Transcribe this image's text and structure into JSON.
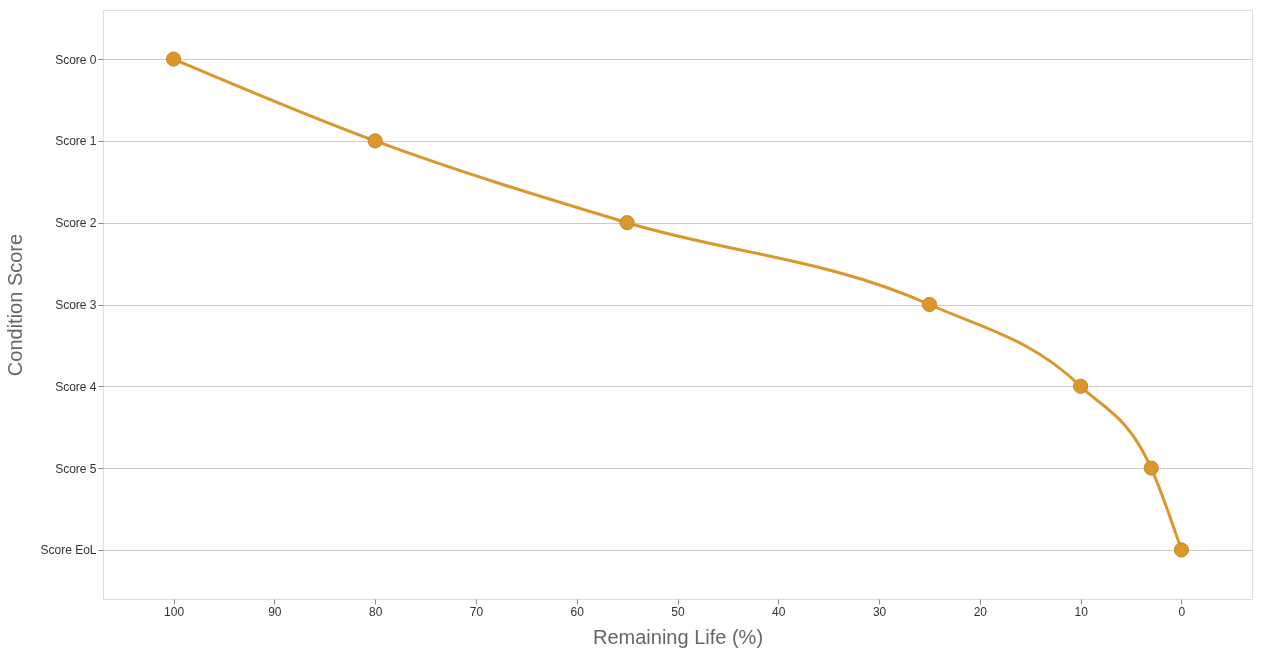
{
  "chart_data": {
    "type": "line",
    "orientation": "horizontal",
    "xlabel": "Remaining Life (%)",
    "ylabel": "Condition Score",
    "categories": [
      "Score 0",
      "Score 1",
      "Score 2",
      "Score 3",
      "Score 4",
      "Score 5",
      "Score EoL"
    ],
    "series": [
      {
        "color": "#d9982b",
        "values": [
          100,
          80,
          55,
          25,
          10,
          3,
          0
        ]
      }
    ],
    "xlim": [
      107,
      -7
    ],
    "xticks": [
      100,
      90,
      80,
      70,
      60,
      50,
      40,
      30,
      20,
      10,
      0
    ],
    "grid": "y",
    "marker": "circle",
    "line_style": "solid"
  }
}
